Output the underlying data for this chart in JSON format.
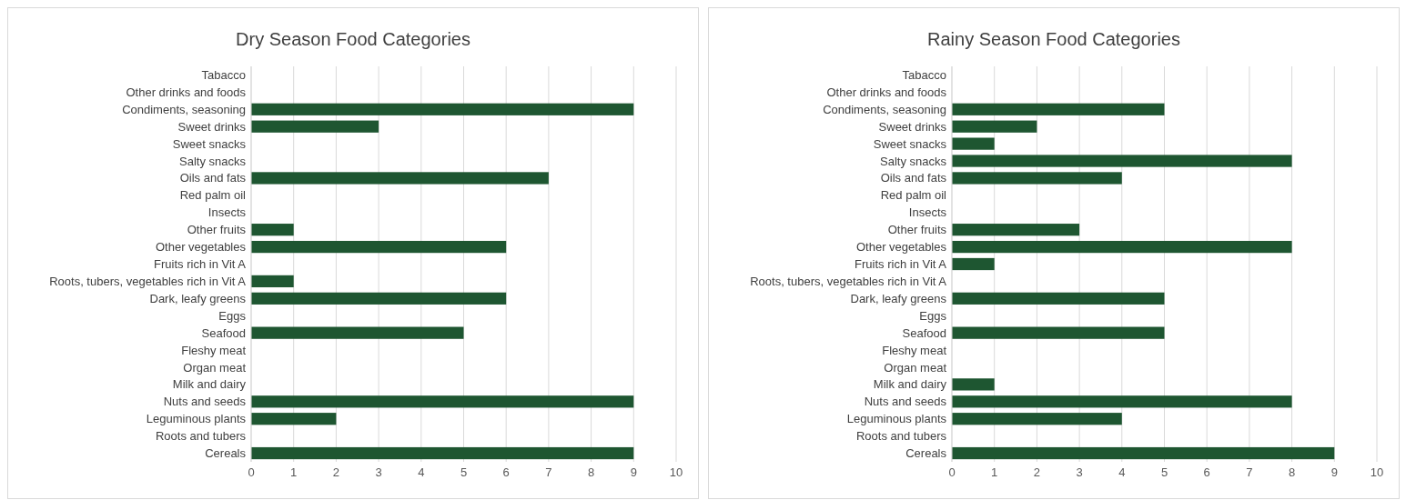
{
  "chart_data": [
    {
      "type": "bar",
      "orientation": "horizontal",
      "title": "Dry Season Food Categories",
      "categories": [
        "Tabacco",
        "Other drinks and foods",
        "Condiments, seasoning",
        "Sweet drinks",
        "Sweet snacks",
        "Salty snacks",
        "Oils and fats",
        "Red palm oil",
        "Insects",
        "Other fruits",
        "Other vegetables",
        "Fruits rich in Vit A",
        "Roots, tubers, vegetables rich in Vit A",
        "Dark, leafy greens",
        "Eggs",
        "Seafood",
        "Fleshy meat",
        "Organ meat",
        "Milk and dairy",
        "Nuts and seeds",
        "Leguminous plants",
        "Roots and tubers",
        "Cereals"
      ],
      "values": [
        0,
        0,
        9,
        3,
        0,
        0,
        7,
        0,
        0,
        1,
        6,
        0,
        1,
        6,
        0,
        5,
        0,
        0,
        0,
        9,
        2,
        0,
        9
      ],
      "color": "#1e5631",
      "xlim": [
        0,
        10
      ],
      "xticks": [
        0,
        1,
        2,
        3,
        4,
        5,
        6,
        7,
        8,
        9,
        10
      ],
      "grid": "x"
    },
    {
      "type": "bar",
      "orientation": "horizontal",
      "title": "Rainy Season Food Categories",
      "categories": [
        "Tabacco",
        "Other drinks and foods",
        "Condiments, seasoning",
        "Sweet drinks",
        "Sweet snacks",
        "Salty snacks",
        "Oils and fats",
        "Red palm oil",
        "Insects",
        "Other fruits",
        "Other vegetables",
        "Fruits rich in Vit A",
        "Roots, tubers, vegetables rich in Vit A",
        "Dark, leafy greens",
        "Eggs",
        "Seafood",
        "Fleshy meat",
        "Organ meat",
        "Milk and dairy",
        "Nuts and seeds",
        "Leguminous plants",
        "Roots and tubers",
        "Cereals"
      ],
      "values": [
        0,
        0,
        5,
        2,
        1,
        8,
        4,
        0,
        0,
        3,
        8,
        1,
        0,
        5,
        0,
        5,
        0,
        0,
        1,
        8,
        4,
        0,
        9
      ],
      "color": "#1e5631",
      "xlim": [
        0,
        10
      ],
      "xticks": [
        0,
        1,
        2,
        3,
        4,
        5,
        6,
        7,
        8,
        9,
        10
      ],
      "grid": "x"
    }
  ]
}
